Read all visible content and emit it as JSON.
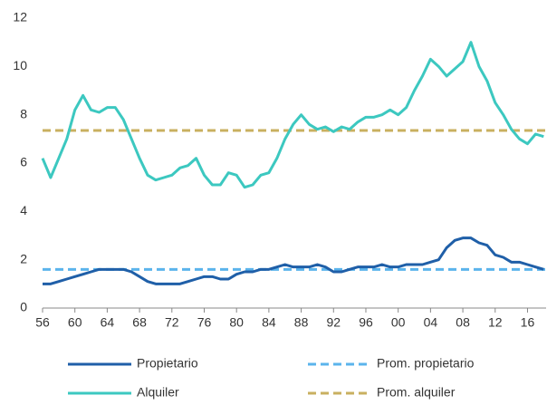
{
  "chart_data": {
    "type": "line",
    "x": [
      1956,
      1957,
      1958,
      1959,
      1960,
      1961,
      1962,
      1963,
      1964,
      1965,
      1966,
      1967,
      1968,
      1969,
      1970,
      1971,
      1972,
      1973,
      1974,
      1975,
      1976,
      1977,
      1978,
      1979,
      1980,
      1981,
      1982,
      1983,
      1984,
      1985,
      1986,
      1987,
      1988,
      1989,
      1990,
      1991,
      1992,
      1993,
      1994,
      1995,
      1996,
      1997,
      1998,
      1999,
      2000,
      2001,
      2002,
      2003,
      2004,
      2005,
      2006,
      2007,
      2008,
      2009,
      2010,
      2011,
      2012,
      2013,
      2014,
      2015,
      2016,
      2017,
      2018
    ],
    "series": [
      {
        "name": "Propietario",
        "color": "#1f5fa8",
        "values": [
          1.0,
          1.0,
          1.1,
          1.2,
          1.3,
          1.4,
          1.5,
          1.6,
          1.6,
          1.6,
          1.6,
          1.5,
          1.3,
          1.1,
          1.0,
          1.0,
          1.0,
          1.0,
          1.1,
          1.2,
          1.3,
          1.3,
          1.2,
          1.2,
          1.4,
          1.5,
          1.5,
          1.6,
          1.6,
          1.7,
          1.8,
          1.7,
          1.7,
          1.7,
          1.8,
          1.7,
          1.5,
          1.5,
          1.6,
          1.7,
          1.7,
          1.7,
          1.8,
          1.7,
          1.7,
          1.8,
          1.8,
          1.8,
          1.9,
          2.0,
          2.5,
          2.8,
          2.9,
          2.9,
          2.7,
          2.6,
          2.2,
          2.1,
          1.9,
          1.9,
          1.8,
          1.7,
          1.6
        ]
      },
      {
        "name": "Alquiler",
        "color": "#3cc8c0",
        "values": [
          6.2,
          5.4,
          6.2,
          7.0,
          8.2,
          8.8,
          8.2,
          8.1,
          8.3,
          8.3,
          7.8,
          7.0,
          6.2,
          5.5,
          5.3,
          5.4,
          5.5,
          5.8,
          5.9,
          6.2,
          5.5,
          5.1,
          5.1,
          5.6,
          5.5,
          5.0,
          5.1,
          5.5,
          5.6,
          6.2,
          7.0,
          7.6,
          8.0,
          7.6,
          7.4,
          7.5,
          7.3,
          7.5,
          7.4,
          7.7,
          7.9,
          7.9,
          8.0,
          8.2,
          8.0,
          8.3,
          9.0,
          9.6,
          10.3,
          10.0,
          9.6,
          9.9,
          10.2,
          11.0,
          10.0,
          9.4,
          8.5,
          8.0,
          7.4,
          7.0,
          6.8,
          7.2,
          7.1
        ]
      }
    ],
    "averages": [
      {
        "name": "Prom. propietario",
        "color": "#5bb4ec",
        "value": 1.6
      },
      {
        "name": "Prom. alquiler",
        "color": "#c9b060",
        "value": 7.35
      }
    ],
    "xlim": [
      1956,
      2018.3
    ],
    "xticks": [
      {
        "value": 1956,
        "label": "56"
      },
      {
        "value": 1960,
        "label": "60"
      },
      {
        "value": 1964,
        "label": "64"
      },
      {
        "value": 1968,
        "label": "68"
      },
      {
        "value": 1972,
        "label": "72"
      },
      {
        "value": 1976,
        "label": "76"
      },
      {
        "value": 1980,
        "label": "80"
      },
      {
        "value": 1984,
        "label": "84"
      },
      {
        "value": 1988,
        "label": "88"
      },
      {
        "value": 1992,
        "label": "92"
      },
      {
        "value": 1996,
        "label": "96"
      },
      {
        "value": 2000,
        "label": "00"
      },
      {
        "value": 2004,
        "label": "04"
      },
      {
        "value": 2008,
        "label": "08"
      },
      {
        "value": 2012,
        "label": "12"
      },
      {
        "value": 2016,
        "label": "16"
      }
    ],
    "ylim": [
      0,
      12
    ],
    "yticks": [
      0,
      2,
      4,
      6,
      8,
      10,
      12
    ]
  }
}
